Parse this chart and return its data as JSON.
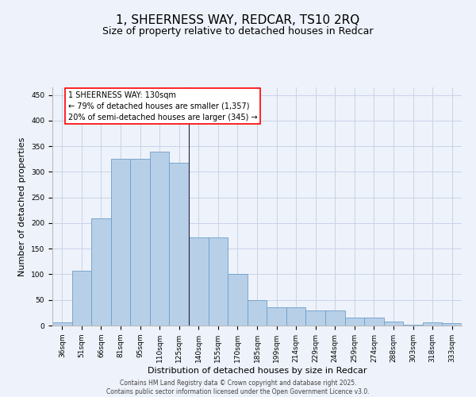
{
  "title": "1, SHEERNESS WAY, REDCAR, TS10 2RQ",
  "subtitle": "Size of property relative to detached houses in Redcar",
  "xlabel": "Distribution of detached houses by size in Redcar",
  "ylabel": "Number of detached properties",
  "bar_color": "#b8cfe8",
  "bar_edge_color": "#6b9fc8",
  "categories": [
    "36sqm",
    "51sqm",
    "66sqm",
    "81sqm",
    "95sqm",
    "110sqm",
    "125sqm",
    "140sqm",
    "155sqm",
    "170sqm",
    "185sqm",
    "199sqm",
    "214sqm",
    "229sqm",
    "244sqm",
    "259sqm",
    "274sqm",
    "288sqm",
    "303sqm",
    "318sqm",
    "333sqm"
  ],
  "values": [
    6,
    107,
    210,
    325,
    325,
    340,
    318,
    172,
    172,
    100,
    50,
    35,
    35,
    30,
    30,
    16,
    16,
    8,
    1,
    6,
    5
  ],
  "vline_x_idx": 7,
  "annotation_title": "1 SHEERNESS WAY: 130sqm",
  "annotation_line1": "← 79% of detached houses are smaller (1,357)",
  "annotation_line2": "20% of semi-detached houses are larger (345) →",
  "ylim": [
    0,
    465
  ],
  "yticks": [
    0,
    50,
    100,
    150,
    200,
    250,
    300,
    350,
    400,
    450
  ],
  "footer_line1": "Contains HM Land Registry data © Crown copyright and database right 2025.",
  "footer_line2": "Contains public sector information licensed under the Open Government Licence v3.0.",
  "bg_color": "#eef2fa",
  "grid_color": "#c8d4e8",
  "title_fontsize": 11,
  "subtitle_fontsize": 9,
  "tick_fontsize": 6.5,
  "ylabel_fontsize": 8,
  "xlabel_fontsize": 8,
  "footer_fontsize": 5.5,
  "annotation_fontsize": 7
}
